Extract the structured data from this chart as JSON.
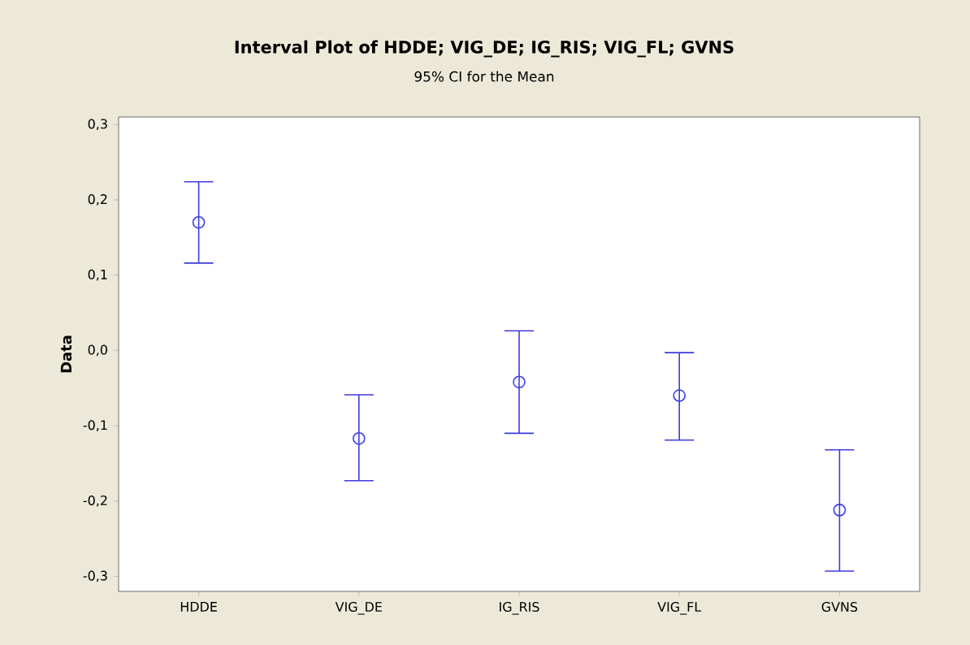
{
  "chart_data": {
    "type": "scatter",
    "title": "Interval Plot of HDDE; VIG_DE; IG_RIS; VIG_FL; GVNS",
    "subtitle": "95% CI for the Mean",
    "ylabel": "Data",
    "categories": [
      "HDDE",
      "VIG_DE",
      "IG_RIS",
      "VIG_FL",
      "GVNS"
    ],
    "values": [
      0.17,
      -0.117,
      -0.042,
      -0.06,
      -0.212
    ],
    "errors": [
      [
        0.116,
        0.224
      ],
      [
        -0.173,
        -0.059
      ],
      [
        -0.11,
        0.026
      ],
      [
        -0.119,
        -0.003
      ],
      [
        -0.293,
        -0.132
      ]
    ],
    "color": "#3c3cdc",
    "marker": "circle",
    "ylim": [
      -0.32,
      0.31
    ],
    "yticks": [
      {
        "value": -0.3,
        "label": "-0,3"
      },
      {
        "value": -0.2,
        "label": "-0,2"
      },
      {
        "value": -0.1,
        "label": "-0,1"
      },
      {
        "value": 0,
        "label": "0,0"
      },
      {
        "value": 0.1,
        "label": "0,1"
      },
      {
        "value": 0.2,
        "label": "0,2"
      },
      {
        "value": 0.3,
        "label": "0,3"
      }
    ]
  }
}
